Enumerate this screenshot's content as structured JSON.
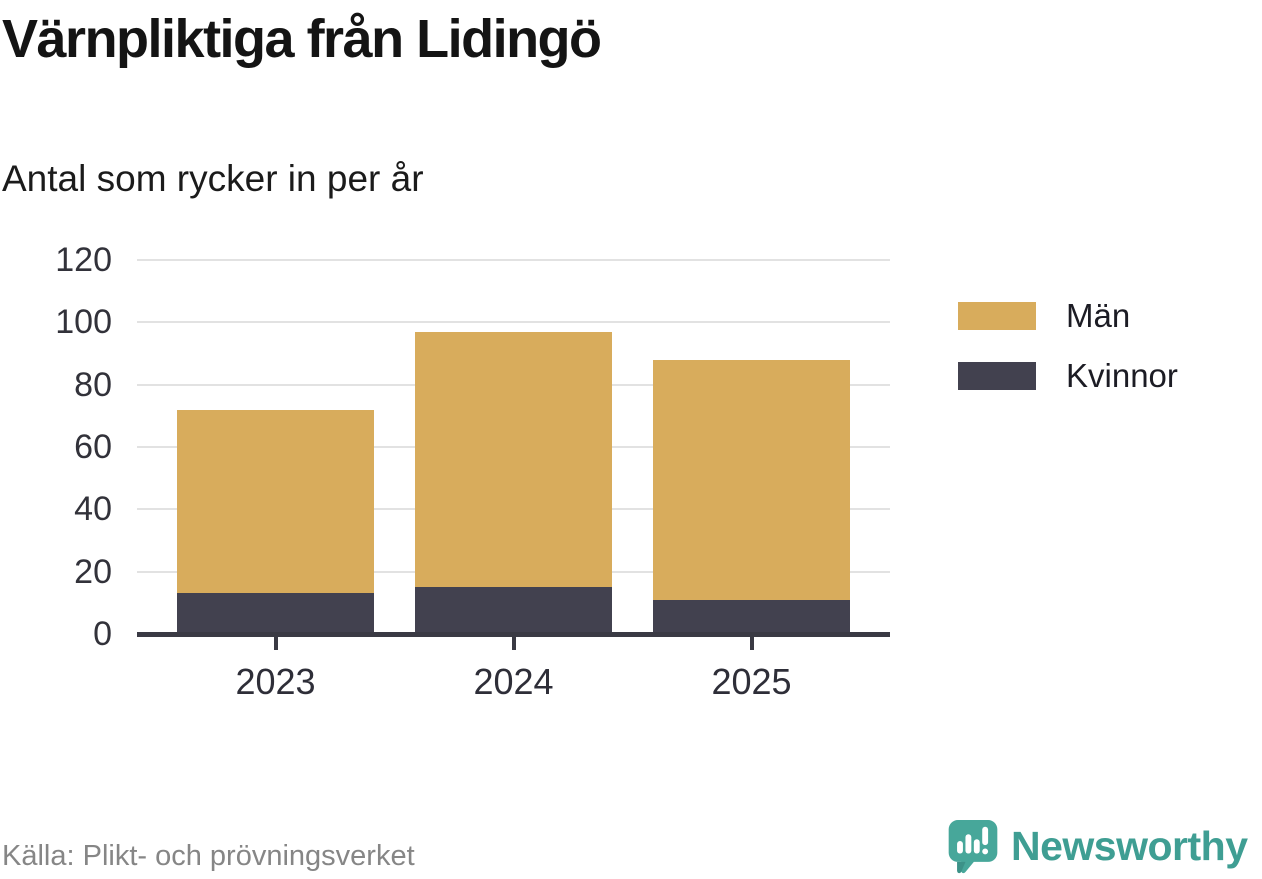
{
  "chart_data": {
    "type": "bar",
    "stacked": true,
    "title": "Värnpliktiga från Lidingö",
    "subtitle": "Antal som rycker in per år",
    "categories": [
      "2023",
      "2024",
      "2025"
    ],
    "series": [
      {
        "name": "Män",
        "color": "#d8ac5c",
        "values": [
          59,
          82,
          77
        ]
      },
      {
        "name": "Kvinnor",
        "color": "#42414f",
        "values": [
          13,
          15,
          11
        ]
      }
    ],
    "stack_bottom_to_top": [
      "Kvinnor",
      "Män"
    ],
    "stacked_totals": [
      72,
      97,
      88
    ],
    "xlabel": "",
    "ylabel": "",
    "ylim": [
      0,
      120
    ],
    "yticks": [
      0,
      20,
      40,
      60,
      80,
      100,
      120
    ],
    "grid": true,
    "legend_position": "right",
    "source": "Källa: Plikt- och prövningsverket"
  },
  "branding": {
    "wordmark": "Newsworthy",
    "brand_color": "#3f9e93"
  },
  "colors": {
    "gridline": "#e2e2e2",
    "axis": "#3a3a44",
    "tick_label": "#2e2e38"
  }
}
